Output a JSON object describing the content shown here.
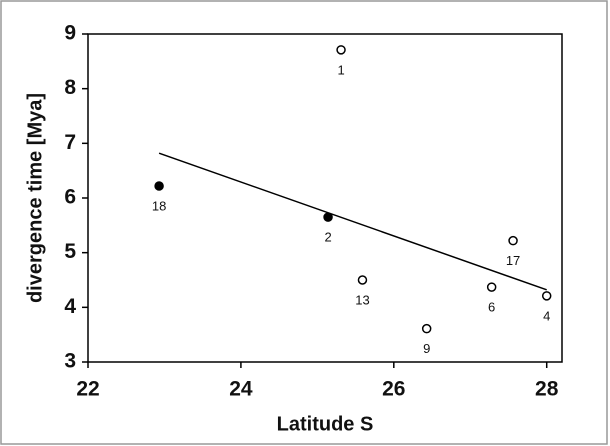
{
  "chart_data": {
    "type": "scatter",
    "x_label": "Latitude S",
    "y_label": "divergence time [Mya]",
    "xlim": [
      22,
      28.2
    ],
    "ylim": [
      3,
      9
    ],
    "xticks": [
      22,
      24,
      26,
      28
    ],
    "yticks": [
      3,
      4,
      5,
      6,
      7,
      8,
      9
    ],
    "series": [
      {
        "type": "scatter",
        "color": "#000000",
        "x": [
          22.93,
          25.31,
          25.14,
          25.59,
          26.43,
          27.28,
          27.56,
          28.0
        ],
        "values": [
          6.22,
          8.71,
          5.65,
          4.5,
          3.61,
          4.37,
          5.22,
          4.21
        ],
        "point_labels": [
          "18",
          "1",
          "2",
          "13",
          "9",
          "6",
          "17",
          "4"
        ],
        "filled": [
          true,
          false,
          true,
          false,
          false,
          false,
          false,
          false
        ]
      },
      {
        "type": "line",
        "color": "#000000",
        "x": [
          22.93,
          28.0
        ],
        "values": [
          6.82,
          4.32
        ]
      }
    ]
  }
}
